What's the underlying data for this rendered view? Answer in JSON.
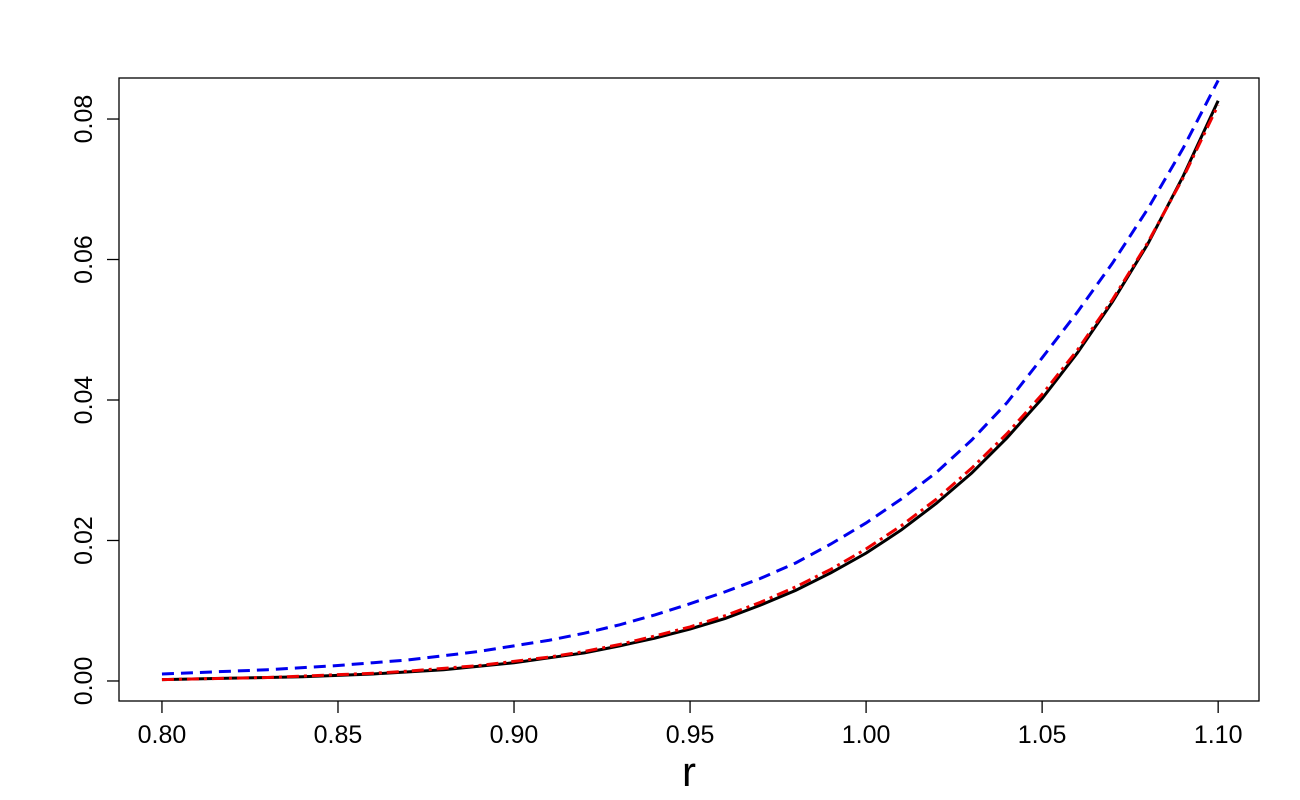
{
  "chart_data": {
    "type": "line",
    "xlabel": "r",
    "x": [
      0.8,
      0.81,
      0.82,
      0.83,
      0.84,
      0.85,
      0.86,
      0.87,
      0.88,
      0.89,
      0.9,
      0.91,
      0.92,
      0.93,
      0.94,
      0.95,
      0.96,
      0.97,
      0.98,
      0.99,
      1.0,
      1.01,
      1.02,
      1.03,
      1.04,
      1.05,
      1.06,
      1.07,
      1.08,
      1.09,
      1.1
    ],
    "series": [
      {
        "color": "#0000ee",
        "linestyle": "dashed",
        "values": [
          0.001,
          0.0012,
          0.0014,
          0.0016,
          0.0019,
          0.0022,
          0.0026,
          0.003,
          0.0036,
          0.0042,
          0.005,
          0.0058,
          0.0068,
          0.008,
          0.0094,
          0.011,
          0.0127,
          0.0146,
          0.0168,
          0.0195,
          0.0225,
          0.0259,
          0.0297,
          0.0343,
          0.0396,
          0.046,
          0.0525,
          0.0595,
          0.0672,
          0.0758,
          0.0855
        ]
      },
      {
        "color": "#000000",
        "linestyle": "solid",
        "values": [
          0.0002,
          0.0003,
          0.0004,
          0.0005,
          0.0006,
          0.0008,
          0.001,
          0.0013,
          0.0016,
          0.0021,
          0.0026,
          0.0033,
          0.004,
          0.005,
          0.0061,
          0.0074,
          0.0089,
          0.0108,
          0.0129,
          0.0154,
          0.0182,
          0.0215,
          0.0253,
          0.0296,
          0.0346,
          0.0402,
          0.0467,
          0.054,
          0.0622,
          0.0718,
          0.0826
        ]
      },
      {
        "color": "#ee0000",
        "linestyle": "dashdot",
        "values": [
          0.0002,
          0.0003,
          0.0004,
          0.0005,
          0.0007,
          0.0009,
          0.0011,
          0.0014,
          0.0018,
          0.0022,
          0.0028,
          0.0034,
          0.0042,
          0.0052,
          0.0064,
          0.0077,
          0.0093,
          0.0112,
          0.0134,
          0.0159,
          0.0188,
          0.0221,
          0.0259,
          0.0303,
          0.0352,
          0.0408,
          0.0471,
          0.0543,
          0.0624,
          0.0716,
          0.082
        ]
      }
    ],
    "xlim": [
      0.7878,
      1.1116
    ],
    "ylim": [
      -0.00285,
      0.08584
    ],
    "xticks": [
      {
        "value": 0.8,
        "label": "0.80"
      },
      {
        "value": 0.85,
        "label": "0.85"
      },
      {
        "value": 0.9,
        "label": "0.90"
      },
      {
        "value": 0.95,
        "label": "0.95"
      },
      {
        "value": 1.0,
        "label": "1.00"
      },
      {
        "value": 1.05,
        "label": "1.05"
      },
      {
        "value": 1.1,
        "label": "1.10"
      }
    ],
    "yticks": [
      {
        "value": 0,
        "label": "0.00"
      },
      {
        "value": 0.02,
        "label": "0.02"
      },
      {
        "value": 0.04,
        "label": "0.04"
      },
      {
        "value": 0.06,
        "label": "0.06"
      },
      {
        "value": 0.08,
        "label": "0.08"
      }
    ],
    "grid": false
  }
}
